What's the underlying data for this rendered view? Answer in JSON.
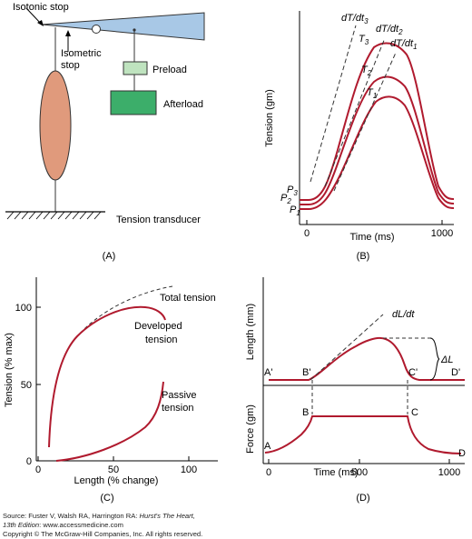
{
  "panel_a": {
    "label": "(A)",
    "isotonic_stop": "Isotonic stop",
    "isometric_stop_line1": "Isometric",
    "isometric_stop_line2": "stop",
    "preload": "Preload",
    "afterload": "Afterload",
    "tension_transducer": "Tension transducer",
    "colors": {
      "muscle": "#e09a7c",
      "lever": "#a8c8e6",
      "preload": "#bfe3bf",
      "afterload": "#3cae6a"
    }
  },
  "panel_b": {
    "label": "(B)",
    "ylabel": "Tension (gm)",
    "xlabel": "Time (ms)",
    "x_ticks": [
      "0",
      "1000"
    ],
    "curve_labels": [
      "T1",
      "T2",
      "T3"
    ],
    "slope_labels": [
      "dT/dt1",
      "dT/dt2",
      "dT/dt3"
    ],
    "preload_labels": [
      "P1",
      "P2",
      "P3"
    ],
    "curve_color": "#b01a2e"
  },
  "panel_c": {
    "label": "(C)",
    "ylabel": "Tension (% max)",
    "xlabel": "Length (% change)",
    "y_ticks": [
      "0",
      "50",
      "100"
    ],
    "x_ticks": [
      "0",
      "50",
      "100"
    ],
    "total_tension": "Total tension",
    "developed_tension_line1": "Developed",
    "developed_tension_line2": "tension",
    "passive_tension_line1": "Passive",
    "passive_tension_line2": "tension"
  },
  "panel_d": {
    "label": "(D)",
    "ylabel_top": "Length (mm)",
    "ylabel_bottom": "Force (gm)",
    "xlabel": "Time (ms)",
    "x_ticks": [
      "0",
      "500",
      "1000"
    ],
    "slope_label": "dL/dt",
    "delta_label": "ΔL",
    "points_top": [
      "A'",
      "B'",
      "C'",
      "D'"
    ],
    "points_bottom": [
      "A",
      "B",
      "C",
      "D"
    ]
  },
  "source": {
    "line1_prefix": "Source: Fuster V, Walsh RA, Harrington RA: ",
    "line1_title": "Hurst's The Heart,",
    "line2_title": "13th Edition",
    "line2_suffix": ": www.accessmedicine.com",
    "line3": "Copyright © The McGraw-Hill Companies, Inc. All rights reserved."
  }
}
